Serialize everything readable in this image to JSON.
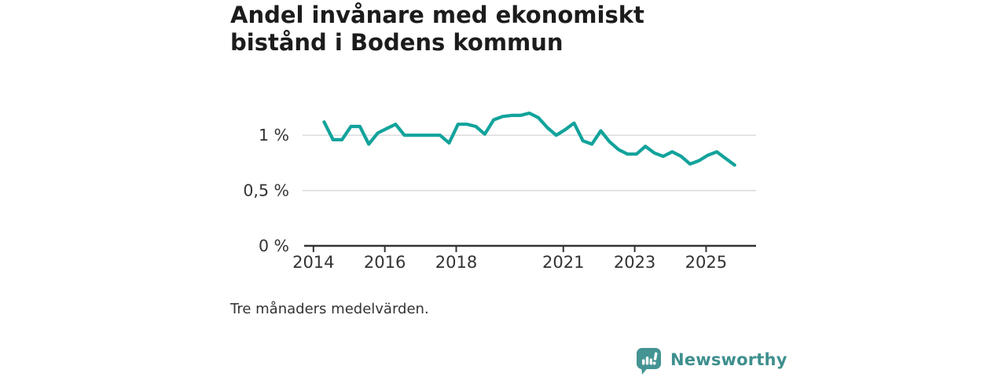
{
  "title": "Andel invånare med ekonomiskt bistånd i Bodens kommun",
  "footnote": "Tre månaders medelvärden.",
  "branding": {
    "wordmark": "Newsworthy",
    "icon": "newsworthy-speech-bubble-bar-chart-icon",
    "color": "#3e8f8e"
  },
  "chart_data": {
    "type": "line",
    "title": "Andel invånare med ekonomiskt bistånd i Bodens kommun",
    "subtitle": "Tre månaders medelvärden.",
    "xlabel": "",
    "ylabel": "",
    "unit": "%",
    "grid": "horizontal-only",
    "legend": "none",
    "line_color": "#12a39b",
    "axis_color": "#333333",
    "gridline_color": "#d9d9d9",
    "x_range": [
      2013.74,
      2026.4
    ],
    "y_range": [
      0,
      1.3
    ],
    "x_ticks": [
      {
        "v": 2014,
        "label": "2014"
      },
      {
        "v": 2016,
        "label": "2016"
      },
      {
        "v": 2018,
        "label": "2018"
      },
      {
        "v": 2021,
        "label": "2021"
      },
      {
        "v": 2023,
        "label": "2023"
      },
      {
        "v": 2025,
        "label": "2025"
      }
    ],
    "y_ticks": [
      {
        "v": 0,
        "label": "0 %"
      },
      {
        "v": 0.5,
        "label": "0,5 %"
      },
      {
        "v": 1,
        "label": "1 %"
      }
    ],
    "series": [
      {
        "name": "Andel invånare med ekonomiskt bistånd (%)",
        "points": [
          [
            2014.3,
            1.12
          ],
          [
            2014.55,
            0.96
          ],
          [
            2014.8,
            0.96
          ],
          [
            2015.05,
            1.08
          ],
          [
            2015.3,
            1.08
          ],
          [
            2015.55,
            0.92
          ],
          [
            2015.8,
            1.02
          ],
          [
            2016.05,
            1.06
          ],
          [
            2016.3,
            1.1
          ],
          [
            2016.55,
            1.0
          ],
          [
            2016.8,
            1.0
          ],
          [
            2017.05,
            1.0
          ],
          [
            2017.3,
            1.0
          ],
          [
            2017.55,
            1.0
          ],
          [
            2017.8,
            0.93
          ],
          [
            2018.05,
            1.1
          ],
          [
            2018.3,
            1.1
          ],
          [
            2018.55,
            1.08
          ],
          [
            2018.8,
            1.01
          ],
          [
            2019.05,
            1.14
          ],
          [
            2019.3,
            1.17
          ],
          [
            2019.55,
            1.18
          ],
          [
            2019.8,
            1.18
          ],
          [
            2020.05,
            1.2
          ],
          [
            2020.3,
            1.16
          ],
          [
            2020.55,
            1.07
          ],
          [
            2020.8,
            1.0
          ],
          [
            2021.05,
            1.05
          ],
          [
            2021.3,
            1.11
          ],
          [
            2021.55,
            0.95
          ],
          [
            2021.8,
            0.92
          ],
          [
            2022.05,
            1.04
          ],
          [
            2022.3,
            0.94
          ],
          [
            2022.55,
            0.87
          ],
          [
            2022.8,
            0.83
          ],
          [
            2023.05,
            0.83
          ],
          [
            2023.3,
            0.9
          ],
          [
            2023.55,
            0.84
          ],
          [
            2023.8,
            0.81
          ],
          [
            2024.05,
            0.85
          ],
          [
            2024.3,
            0.81
          ],
          [
            2024.55,
            0.74
          ],
          [
            2024.8,
            0.77
          ],
          [
            2025.05,
            0.82
          ],
          [
            2025.3,
            0.85
          ],
          [
            2025.55,
            0.79
          ],
          [
            2025.8,
            0.73
          ]
        ]
      }
    ]
  }
}
